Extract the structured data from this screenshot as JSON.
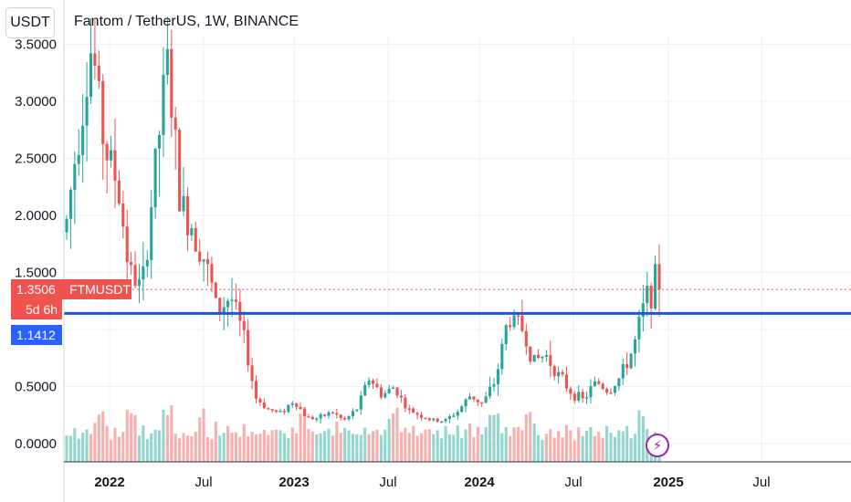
{
  "header": {
    "currency_chip": "USDT",
    "symbol_title": "Fantom / TetherUS, 1W, BINANCE"
  },
  "price_tags": {
    "last_price": "1.3506",
    "symbol": "FTMUSDT",
    "countdown": "5d 6h",
    "level_price": "1.1412"
  },
  "colors": {
    "up": "#26a69a",
    "down": "#ef5350",
    "level_line": "#1e53e5",
    "flash": "#9c27b0"
  },
  "icons": {
    "flash": "lightning-bolt-icon"
  },
  "chart_data": {
    "type": "candlestick",
    "title": "Fantom / TetherUS, 1W, BINANCE",
    "y_tick_labels": [
      "0.0000",
      "0.5000",
      "1.0000",
      "1.5000",
      "2.0000",
      "2.5000",
      "3.0000",
      "3.5000"
    ],
    "ylim": [
      -0.2,
      3.55
    ],
    "x_tick_labels": [
      "2022",
      "Jul",
      "2023",
      "Jul",
      "2024",
      "Jul",
      "2025",
      "Jul"
    ],
    "x_tick_bold": [
      true,
      false,
      true,
      false,
      true,
      false,
      true,
      false
    ],
    "horizontal_level": 1.1412,
    "last_price": 1.3506,
    "grid": true,
    "price_path": [
      [
        1.95,
        1.9
      ],
      [
        2.8,
        2.5
      ],
      [
        3.5,
        3.3
      ],
      [
        2.6,
        2.7
      ],
      [
        2.3,
        2.5
      ],
      [
        1.5,
        1.9
      ],
      [
        1.35,
        1.6
      ],
      [
        2.4,
        2.0
      ],
      [
        3.35,
        3.0
      ],
      [
        2.1,
        2.3
      ],
      [
        1.9,
        1.75
      ],
      [
        1.6,
        1.55
      ],
      [
        1.15,
        1.2
      ],
      [
        1.3,
        1.4
      ],
      [
        0.95,
        0.85
      ],
      [
        0.4,
        0.35
      ],
      [
        0.3,
        0.25
      ],
      [
        0.27,
        0.28
      ],
      [
        0.38,
        0.3
      ],
      [
        0.23,
        0.25
      ],
      [
        0.22,
        0.2
      ],
      [
        0.28,
        0.3
      ],
      [
        0.2,
        0.22
      ],
      [
        0.3,
        0.45
      ],
      [
        0.58,
        0.5
      ],
      [
        0.42,
        0.45
      ],
      [
        0.5,
        0.4
      ],
      [
        0.3,
        0.28
      ],
      [
        0.25,
        0.22
      ],
      [
        0.2,
        0.2
      ],
      [
        0.2,
        0.23
      ],
      [
        0.28,
        0.3
      ],
      [
        0.42,
        0.38
      ],
      [
        0.35,
        0.4
      ],
      [
        0.55,
        0.6
      ],
      [
        1.1,
        0.95
      ],
      [
        1.05,
        0.78
      ],
      [
        0.72,
        0.75
      ],
      [
        0.78,
        0.85
      ],
      [
        0.6,
        0.55
      ],
      [
        0.45,
        0.4
      ],
      [
        0.38,
        0.48
      ],
      [
        0.55,
        0.45
      ],
      [
        0.45,
        0.55
      ],
      [
        0.6,
        0.78
      ],
      [
        0.85,
        0.9
      ],
      [
        1.3,
        1.4
      ],
      [
        1.45,
        1.34
      ]
    ],
    "volume_pattern": [
      0.52,
      0.48,
      0.55,
      0.42,
      0.6,
      0.5,
      0.38,
      0.7,
      0.45,
      0.52,
      0.65,
      0.4,
      0.58,
      0.47,
      0.62,
      0.5,
      0.44,
      0.56,
      0.49,
      0.68,
      0.41,
      0.53,
      0.6,
      0.46,
      0.57,
      0.43,
      0.64,
      0.51,
      0.39,
      0.59
    ],
    "volume_spikes": [
      0.06,
      0.11,
      0.17,
      0.23,
      0.4,
      0.55,
      0.72,
      0.78,
      0.97
    ]
  }
}
